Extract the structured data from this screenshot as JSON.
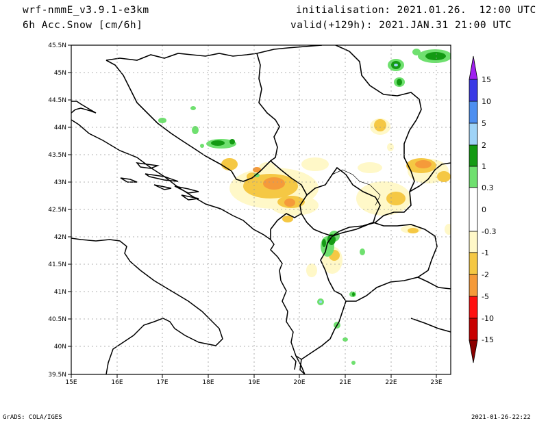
{
  "header": {
    "model": "wrf-nmmE_v3.9.1-e3km",
    "field": "6h Acc.Snow [cm/6h]",
    "init": "initialisation: 2021.01.26.  12:00 UTC",
    "valid": "valid(+129h): 2021.JAN.31 21:00 UTC"
  },
  "footer": {
    "credit": "GrADS: COLA/IGES",
    "timestamp": "2021-01-26-22:22"
  },
  "map": {
    "lon_ticks": [
      "15E",
      "16E",
      "17E",
      "18E",
      "19E",
      "20E",
      "21E",
      "22E",
      "23E"
    ],
    "lat_ticks": [
      "45.5N",
      "45N",
      "44.5N",
      "44N",
      "43.5N",
      "43N",
      "42.5N",
      "42N",
      "41.5N",
      "41N",
      "40.5N",
      "40N",
      "39.5N"
    ],
    "lon_range": [
      15,
      23.3
    ],
    "lat_range": [
      39.5,
      45.5
    ],
    "grid": true
  },
  "colorbar": {
    "labels": [
      "15",
      "10",
      "5",
      "2",
      "1",
      "0.3",
      "0",
      "-0.3",
      "-1",
      "-2",
      "-5",
      "-10",
      "-15"
    ],
    "colors": [
      "#a020f0",
      "#3a3ae6",
      "#4e8ff0",
      "#9fd3f7",
      "#139a13",
      "#6fe06f",
      "#ffffff",
      "#fff8c8",
      "#f5c844",
      "#f59a3a",
      "#ff1010",
      "#c80000",
      "#8b0000"
    ]
  }
}
